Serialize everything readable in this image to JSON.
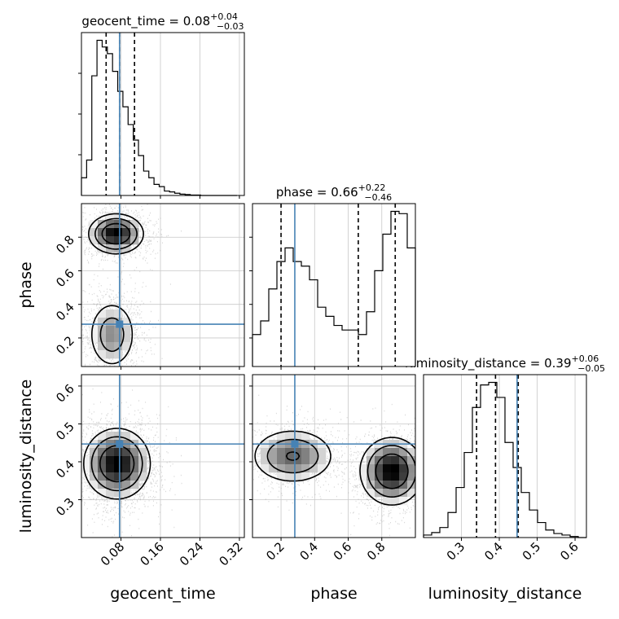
{
  "chart_data": {
    "type": "corner",
    "parameters": [
      "geocent_time",
      "phase",
      "luminosity_distance"
    ],
    "truths": {
      "geocent_time": 0.0772,
      "phase": 0.282,
      "luminosity_distance": 0.447
    },
    "ranges": {
      "geocent_time": [
        0.0,
        0.33
      ],
      "phase": [
        0.03,
        1.0
      ],
      "luminosity_distance": [
        0.2,
        0.63
      ]
    },
    "x_ticks": {
      "geocent_time": [
        "0.08",
        "0.16",
        "0.24",
        "0.32"
      ],
      "phase": [
        "0.2",
        "0.4",
        "0.6",
        "0.8"
      ],
      "luminosity_distance": [
        "0.3",
        "0.4",
        "0.5",
        "0.6"
      ]
    },
    "y_ticks": {
      "phase": [
        "0.2",
        "0.4",
        "0.6",
        "0.8"
      ],
      "luminosity_distance": [
        "0.3",
        "0.4",
        "0.5",
        "0.6"
      ]
    },
    "titles": {
      "geocent_time": {
        "name": "geocent_time",
        "median": "0.08",
        "plus": "+0.04",
        "minus": "−0.03"
      },
      "phase": {
        "name": "phase",
        "median": "0.66",
        "plus": "+0.22",
        "minus": "−0.46"
      },
      "luminosity_distance": {
        "name": "luminosity_distance",
        "median": "0.39",
        "plus": "+0.06",
        "minus": "−0.05"
      }
    },
    "histograms": {
      "geocent_time": {
        "bin_start": 0.0,
        "bin_width": 0.0105,
        "counts": [
          0.4,
          0.8,
          2.7,
          3.5,
          3.35,
          3.2,
          2.8,
          2.35,
          2.0,
          1.6,
          1.25,
          0.9,
          0.55,
          0.4,
          0.25,
          0.2,
          0.1,
          0.08,
          0.05,
          0.03,
          0.02,
          0.01,
          0.01,
          0.0,
          0.0,
          0.0,
          0.0,
          0.0,
          0.0,
          0.0
        ],
        "quantiles": [
          0.05,
          0.0772,
          0.1075
        ]
      },
      "phase": {
        "bin_start": 0.03,
        "bin_width": 0.0485,
        "counts": [
          0.7,
          1.0,
          1.7,
          2.3,
          2.6,
          2.3,
          2.2,
          1.9,
          1.3,
          1.1,
          0.9,
          0.8,
          0.8,
          0.7,
          1.2,
          2.1,
          2.9,
          3.4,
          3.35,
          2.6
        ],
        "quantiles": [
          0.2,
          0.66,
          0.88
        ]
      },
      "luminosity_distance": {
        "bin_start": 0.2,
        "bin_width": 0.0215,
        "counts": [
          0.05,
          0.1,
          0.2,
          0.5,
          1.0,
          1.7,
          2.6,
          3.05,
          3.1,
          2.8,
          1.9,
          1.4,
          0.9,
          0.55,
          0.3,
          0.15,
          0.08,
          0.05,
          0.02,
          0.0
        ],
        "quantiles": [
          0.34,
          0.39,
          0.45
        ]
      }
    },
    "joint": {
      "phase_vs_geocent_time": {
        "modes": [
          {
            "x": 0.07,
            "y": 0.82,
            "sx": 0.028,
            "sy": 0.06,
            "w": 0.55
          },
          {
            "x": 0.062,
            "y": 0.22,
            "sx": 0.026,
            "sy": 0.11,
            "w": 0.45
          }
        ]
      },
      "luminosity_distance_vs_geocent_time": {
        "modes": [
          {
            "x": 0.072,
            "y": 0.395,
            "sx": 0.034,
            "sy": 0.047,
            "w": 1.0
          }
        ]
      },
      "luminosity_distance_vs_phase": {
        "modes": [
          {
            "x": 0.27,
            "y": 0.415,
            "sx": 0.13,
            "sy": 0.038,
            "w": 0.42
          },
          {
            "x": 0.86,
            "y": 0.375,
            "sx": 0.095,
            "sy": 0.045,
            "w": 0.58
          }
        ]
      }
    }
  }
}
